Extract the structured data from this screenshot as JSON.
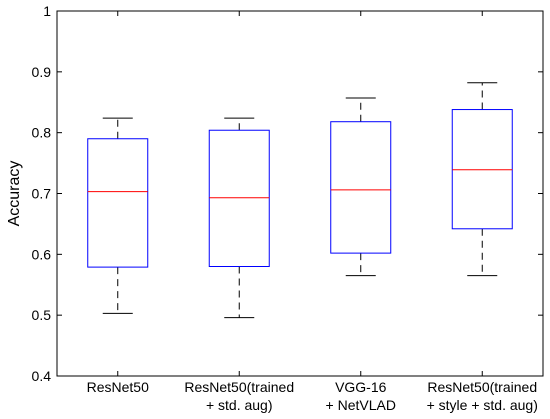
{
  "chart_data": {
    "type": "box",
    "ylabel": "Accuracy",
    "ylim": [
      0.4,
      1.0
    ],
    "yticks": [
      0.4,
      0.5,
      0.6,
      0.7,
      0.8,
      0.9,
      1.0
    ],
    "ytick_labels": [
      "0.4",
      "0.5",
      "0.6",
      "0.7",
      "0.8",
      "0.9",
      "1"
    ],
    "grid": false,
    "categories": [
      {
        "lines": [
          "ResNet50"
        ]
      },
      {
        "lines": [
          "ResNet50(trained",
          "+ std. aug)"
        ]
      },
      {
        "lines": [
          "VGG-16",
          "+ NetVLAD"
        ]
      },
      {
        "lines": [
          "ResNet50(trained",
          "+ style + std. aug)"
        ]
      }
    ],
    "boxes": [
      {
        "min": 0.503,
        "q1": 0.579,
        "median": 0.703,
        "q3": 0.79,
        "max": 0.824
      },
      {
        "min": 0.496,
        "q1": 0.58,
        "median": 0.693,
        "q3": 0.804,
        "max": 0.824
      },
      {
        "min": 0.565,
        "q1": 0.602,
        "median": 0.706,
        "q3": 0.818,
        "max": 0.857
      },
      {
        "min": 0.565,
        "q1": 0.642,
        "median": 0.739,
        "q3": 0.838,
        "max": 0.882
      }
    ],
    "colors": {
      "box": "#0000ff",
      "median": "#ff0000",
      "whisker": "#000000",
      "axis": "#000000"
    }
  }
}
